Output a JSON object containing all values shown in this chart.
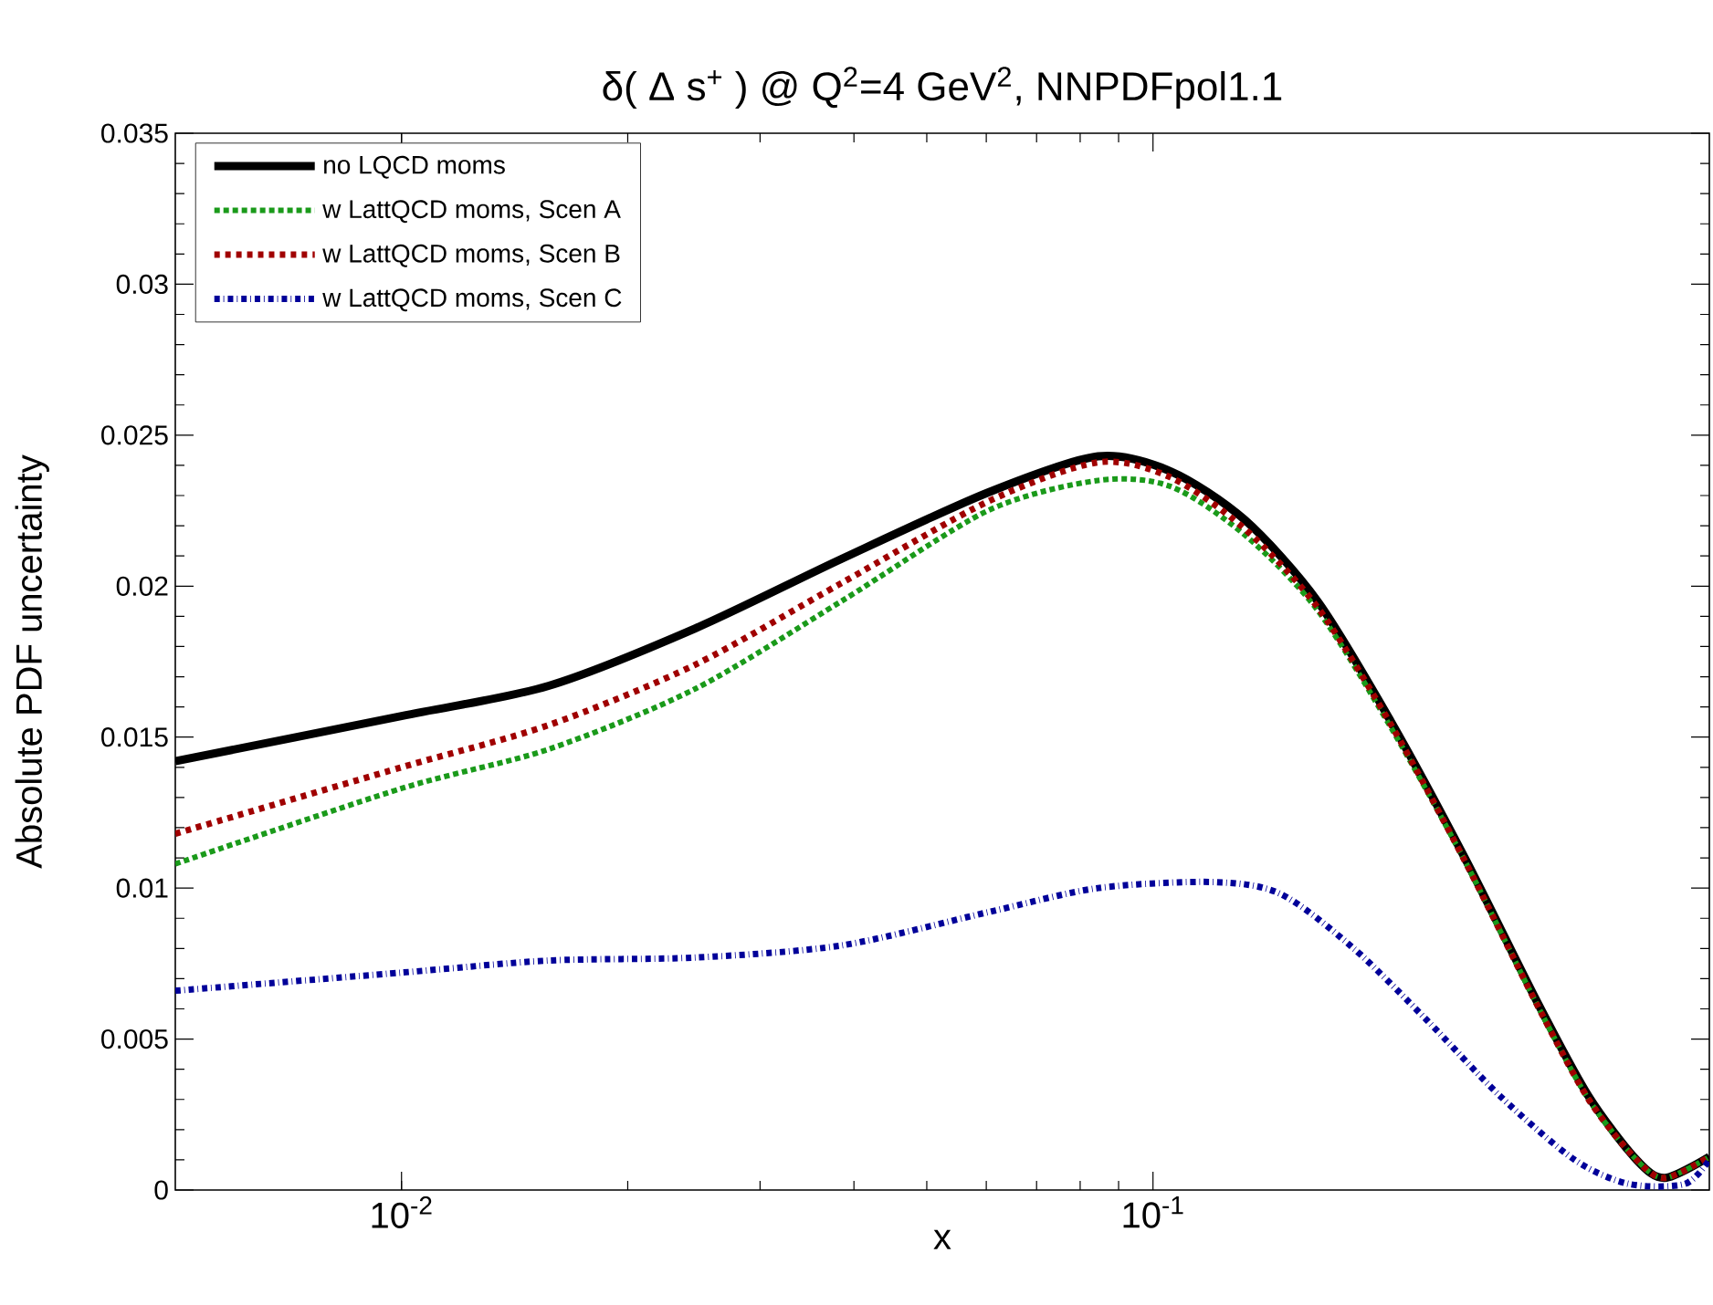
{
  "chart_data": {
    "type": "line",
    "title": "δ( Δ s$^{+}$ ) @ Q$^{2}$=4 GeV$^{2}$, NNPDFpol1.1",
    "xlabel": "x",
    "ylabel": "Absolute PDF uncertainty",
    "log": "x",
    "legend": "top left",
    "xlim": [
      0.005,
      0.55
    ],
    "ylim": [
      0,
      0.035
    ],
    "xticks": [
      {
        "value": 0.01,
        "label": "10$^{-2}$"
      },
      {
        "value": 0.1,
        "label": "10$^{-1}$"
      }
    ],
    "yticks": [
      0,
      0.005,
      0.01,
      0.015,
      0.02,
      0.025,
      0.03,
      0.035
    ],
    "series": [
      {
        "name": "no LQCD moms",
        "color": "#000000",
        "line_style": "solid",
        "x": [
          0.005,
          0.01,
          0.0157,
          0.0246,
          0.0385,
          0.0603,
          0.0845,
          0.1056,
          0.1324,
          0.1656,
          0.2075,
          0.26,
          0.325,
          0.38,
          0.44,
          0.48,
          0.55
        ],
        "values": [
          0.0142,
          0.0157,
          0.0167,
          0.0186,
          0.0209,
          0.0231,
          0.0243,
          0.0238,
          0.0222,
          0.0195,
          0.0155,
          0.011,
          0.0062,
          0.0031,
          0.001,
          0.0004,
          0.0011
        ]
      },
      {
        "name": "w LattQCD moms, Scen A",
        "color": "#1a9a1a",
        "line_style": "dotted",
        "x": [
          0.005,
          0.01,
          0.0157,
          0.0246,
          0.0385,
          0.0603,
          0.0845,
          0.1056,
          0.1324,
          0.1656,
          0.2075,
          0.26,
          0.325,
          0.38,
          0.44,
          0.48,
          0.55
        ],
        "values": [
          0.0108,
          0.0133,
          0.0146,
          0.0166,
          0.0195,
          0.0225,
          0.0235,
          0.0233,
          0.0217,
          0.0192,
          0.0153,
          0.0109,
          0.0061,
          0.003,
          0.001,
          0.0004,
          0.0011
        ]
      },
      {
        "name": "w LattQCD moms, Scen B",
        "color": "#a00000",
        "line_style": "dashed",
        "x": [
          0.005,
          0.01,
          0.0157,
          0.0246,
          0.0385,
          0.0603,
          0.0845,
          0.1056,
          0.1324,
          0.1656,
          0.2075,
          0.26,
          0.325,
          0.38,
          0.44,
          0.48,
          0.55
        ],
        "values": [
          0.0118,
          0.014,
          0.0154,
          0.0174,
          0.0201,
          0.0228,
          0.0241,
          0.0236,
          0.0219,
          0.0193,
          0.0154,
          0.0109,
          0.0061,
          0.003,
          0.001,
          0.0004,
          0.0011
        ]
      },
      {
        "name": "w LattQCD moms, Scen C",
        "color": "#000099",
        "line_style": "dashdot",
        "x": [
          0.005,
          0.01,
          0.0157,
          0.0246,
          0.0385,
          0.0603,
          0.0845,
          0.1203,
          0.148,
          0.185,
          0.232,
          0.29,
          0.364,
          0.43,
          0.51,
          0.55
        ],
        "values": [
          0.0066,
          0.0072,
          0.0076,
          0.0077,
          0.0081,
          0.0092,
          0.01,
          0.0102,
          0.0098,
          0.008,
          0.0056,
          0.0031,
          0.001,
          0.0002,
          0.0002,
          0.001
        ]
      }
    ]
  }
}
